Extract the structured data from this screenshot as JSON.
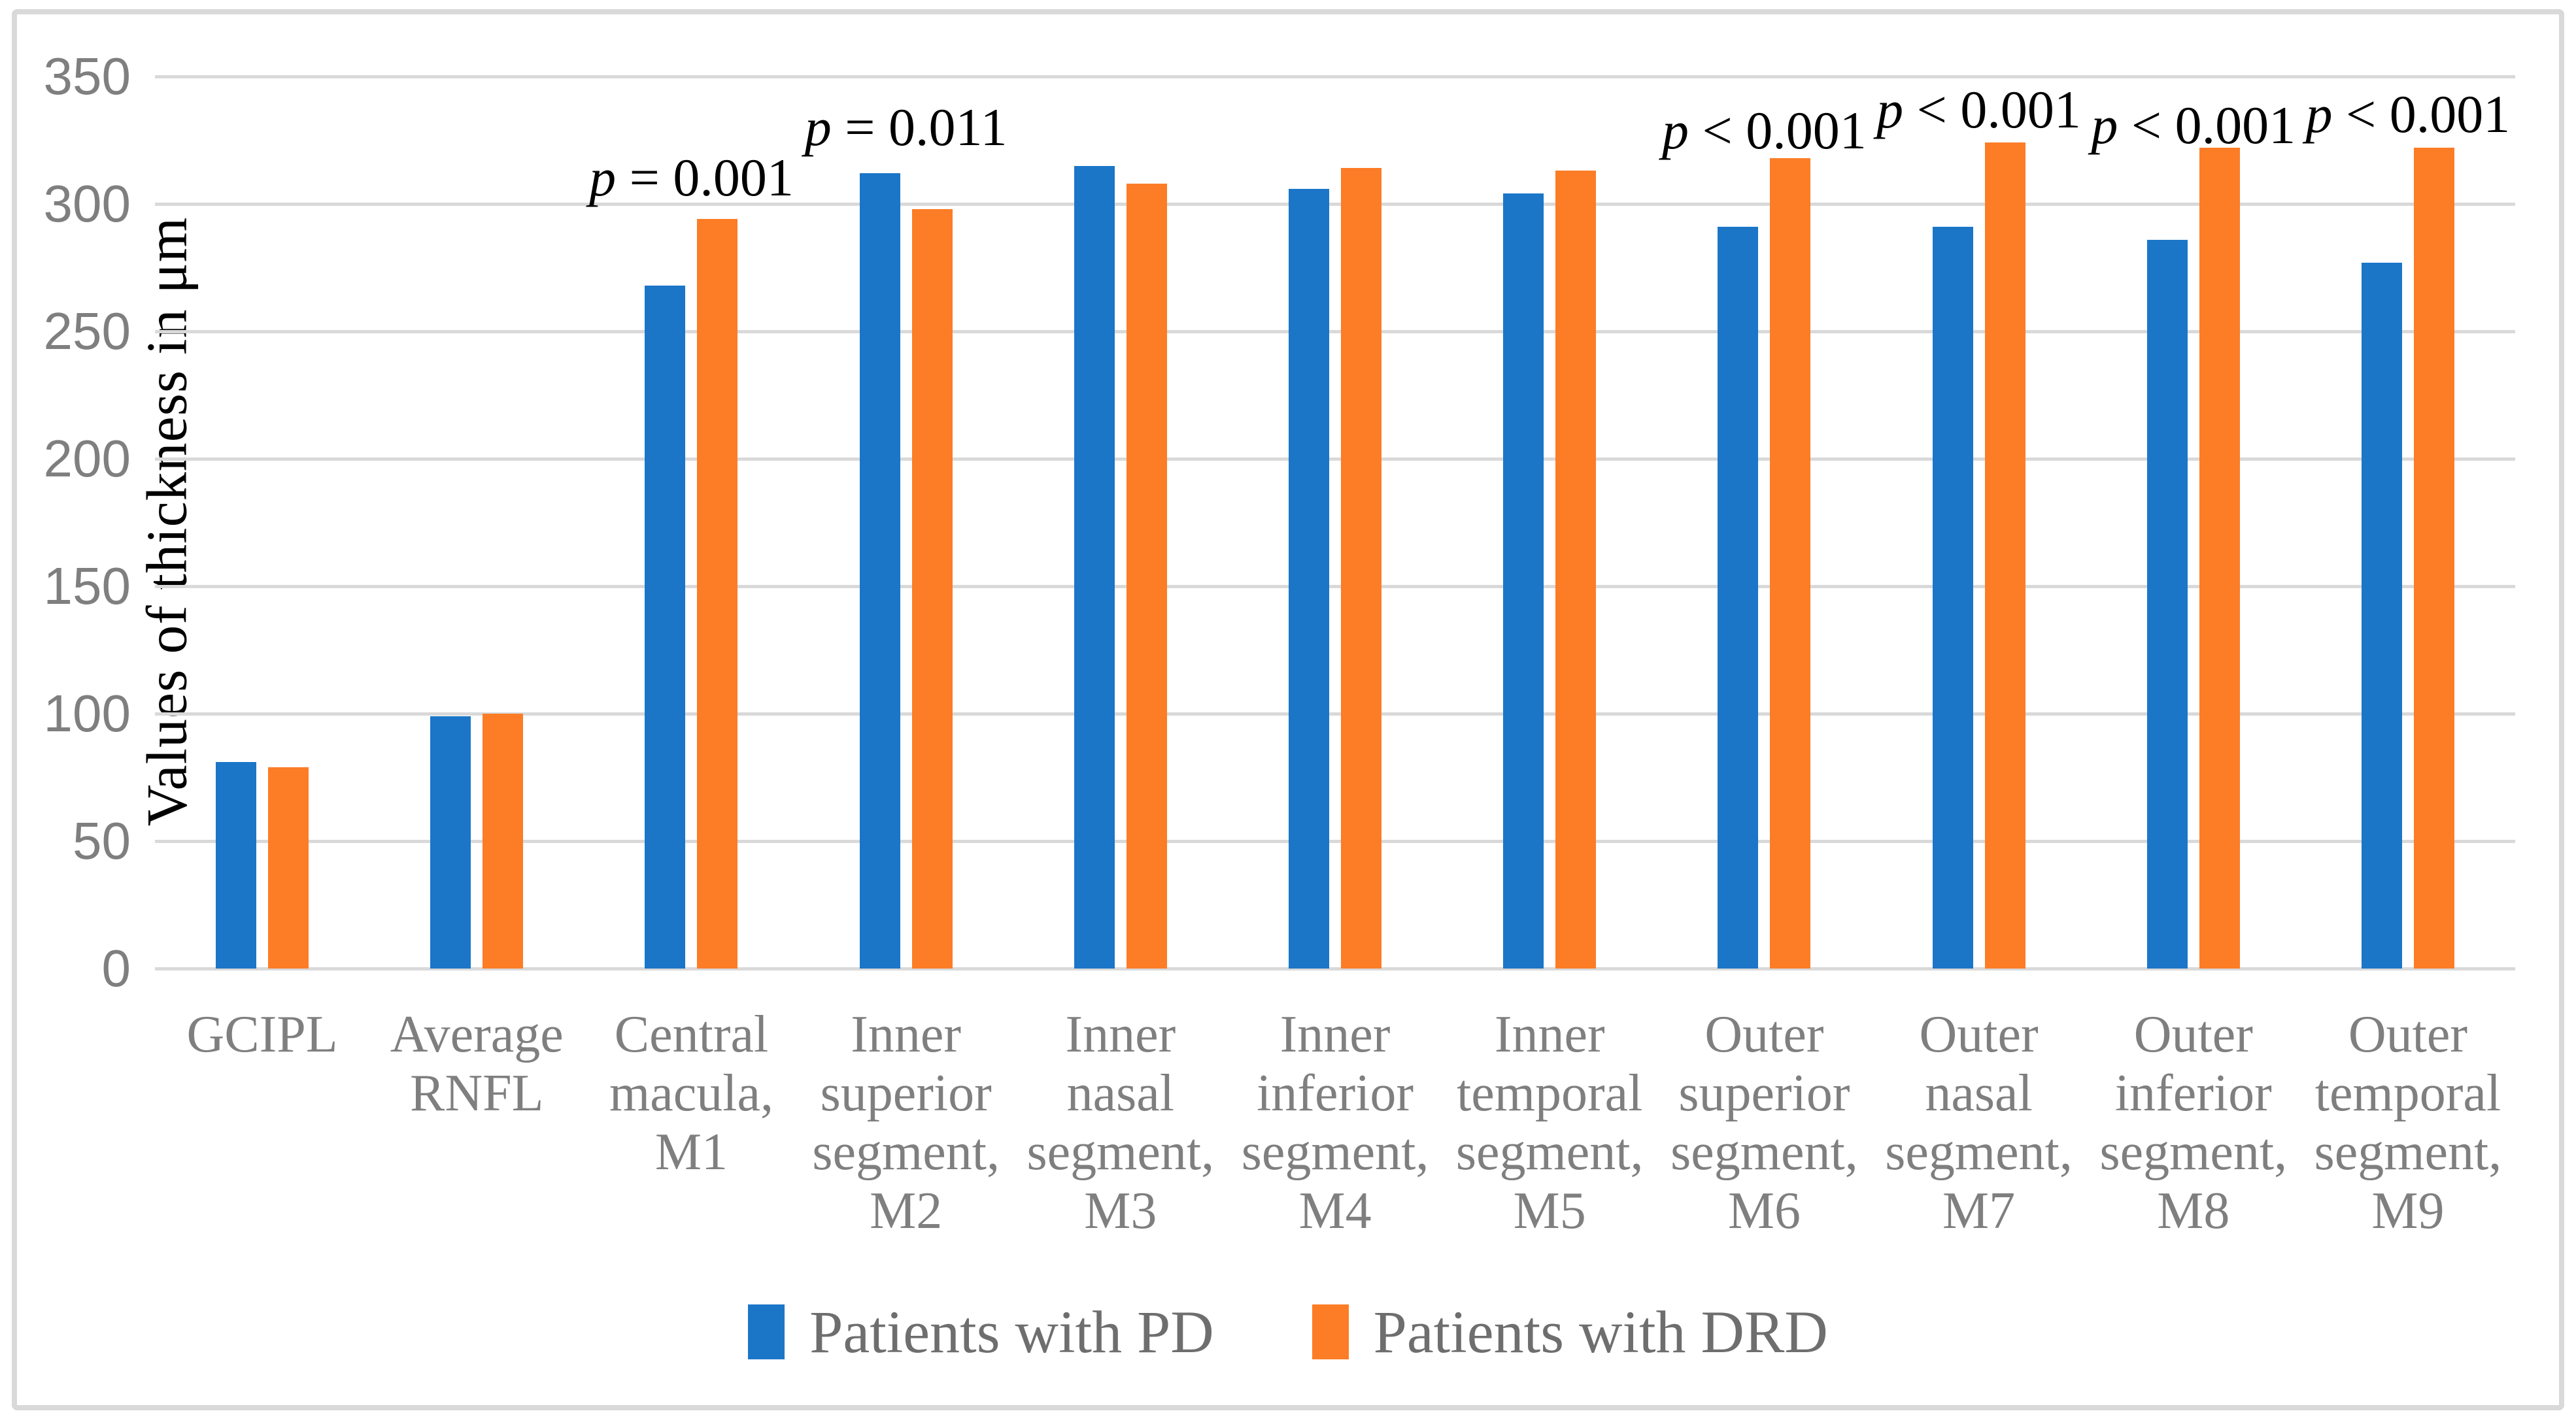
{
  "figure": {
    "background": "#FFFFFF",
    "frame_border_color": "#D9D9D9",
    "gridline_color": "#D9D9D9",
    "tick_label_color": "#7F7F7F",
    "category_label_color": "#7F7F7F",
    "legend_text_color": "#6E6E6E",
    "annotation_color": "#000000"
  },
  "chart_data": {
    "type": "bar",
    "title": "",
    "xlabel": "",
    "ylabel": "Values of thickness in μm",
    "ylim": [
      0,
      350
    ],
    "yticks": [
      0,
      50,
      100,
      150,
      200,
      250,
      300,
      350
    ],
    "grid": true,
    "legend_position": "bottom-center",
    "categories": [
      [
        "GCIPL"
      ],
      [
        "Average",
        "RNFL"
      ],
      [
        "Central",
        "macula,",
        "M1"
      ],
      [
        "Inner",
        "superior",
        "segment,",
        "M2"
      ],
      [
        "Inner",
        "nasal",
        "segment,",
        "M3"
      ],
      [
        "Inner",
        "inferior",
        "segment,",
        "M4"
      ],
      [
        "Inner",
        "temporal",
        "segment,",
        "M5"
      ],
      [
        "Outer",
        "superior",
        "segment,",
        "M6"
      ],
      [
        "Outer",
        "nasal",
        "segment,",
        "M7"
      ],
      [
        "Outer",
        "inferior",
        "segment,",
        "M8"
      ],
      [
        "Outer",
        "temporal",
        "segment,",
        "M9"
      ]
    ],
    "series": [
      {
        "name": "Patients with PD",
        "color": "#1B76C8",
        "values": [
          81,
          99,
          268,
          312,
          315,
          306,
          304,
          291,
          291,
          286,
          277
        ]
      },
      {
        "name": "Patients with DRD",
        "color": "#FC7D26",
        "values": [
          79,
          100,
          294,
          298,
          308,
          314,
          313,
          318,
          324,
          322,
          322
        ]
      }
    ],
    "annotations": [
      {
        "category_index": 2,
        "text": "p = 0.001"
      },
      {
        "category_index": 3,
        "text": "p = 0.011"
      },
      {
        "category_index": 7,
        "text": "p < 0.001"
      },
      {
        "category_index": 8,
        "text": "p < 0.001"
      },
      {
        "category_index": 9,
        "text": "p < 0.001"
      },
      {
        "category_index": 10,
        "text": "p < 0.001"
      }
    ]
  }
}
